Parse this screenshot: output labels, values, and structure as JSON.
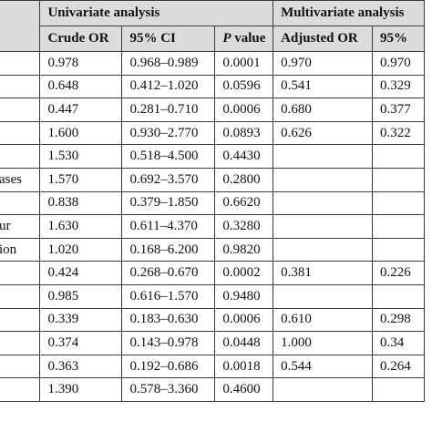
{
  "header": {
    "group_univariate": "Univariate analysis",
    "group_multivariate": "Multivariate analysis",
    "col_crude_or": "Crude OR",
    "col_ci": "95% CI",
    "col_p_italic": "P",
    "col_p_rest": " value",
    "col_adjusted_or": "Adjusted OR",
    "col_ci2": "95%"
  },
  "rows": [
    {
      "label": "",
      "crude_or": "0.978",
      "ci": "0.968–0.989",
      "p": "0.0001",
      "adj_or": "0.970",
      "adj_ci": "0.970"
    },
    {
      "label": "",
      "crude_or": "0.648",
      "ci": "0.412–1.020",
      "p": "0.0596",
      "adj_or": "0.541",
      "adj_ci": "0.329"
    },
    {
      "label": "",
      "crude_or": "0.447",
      "ci": "0.281–0.710",
      "p": "0.0006",
      "adj_or": "0.680",
      "adj_ci": "0.377"
    },
    {
      "label": "",
      "crude_or": "1.600",
      "ci": "0.930–2.770",
      "p": "0.0893",
      "adj_or": "0.626",
      "adj_ci": "0.322"
    },
    {
      "label": "",
      "crude_or": "1.530",
      "ci": "0.518–4.500",
      "p": "0.4430",
      "adj_or": "",
      "adj_ci": ""
    },
    {
      "label": "ases",
      "crude_or": "1.570",
      "ci": "0.692–3.570",
      "p": "0.2800",
      "adj_or": "",
      "adj_ci": ""
    },
    {
      "label": "",
      "crude_or": "0.838",
      "ci": "0.379–1.850",
      "p": "0.6620",
      "adj_or": "",
      "adj_ci": ""
    },
    {
      "label": "ur",
      "crude_or": "1.630",
      "ci": "0.611–4.370",
      "p": "0.3280",
      "adj_or": "",
      "adj_ci": ""
    },
    {
      "label": "ion",
      "crude_or": "1.020",
      "ci": "0.168–6.200",
      "p": "0.9820",
      "adj_or": "",
      "adj_ci": ""
    },
    {
      "label": "",
      "crude_or": "0.424",
      "ci": "0.268–0.670",
      "p": "0.0002",
      "adj_or": "0.381",
      "adj_ci": "0.226"
    },
    {
      "label": "",
      "crude_or": "0.985",
      "ci": "0.616–1.570",
      "p": "0.9480",
      "adj_or": "",
      "adj_ci": ""
    },
    {
      "label": "",
      "crude_or": "0.339",
      "ci": "0.183–0.630",
      "p": "0.0006",
      "adj_or": "0.610",
      "adj_ci": "0.298"
    },
    {
      "label": "",
      "crude_or": "0.374",
      "ci": "0.143–0.978",
      "p": "0.0448",
      "adj_or": "1.000",
      "adj_ci": "0.34"
    },
    {
      "label": "",
      "crude_or": "0.363",
      "ci": "0.192–0.686",
      "p": "0.0018",
      "adj_or": "0.544",
      "adj_ci": "0.264"
    },
    {
      "label": "",
      "crude_or": "1.390",
      "ci": "0.578–3.360",
      "p": "0.4600",
      "adj_or": "",
      "adj_ci": ""
    }
  ]
}
